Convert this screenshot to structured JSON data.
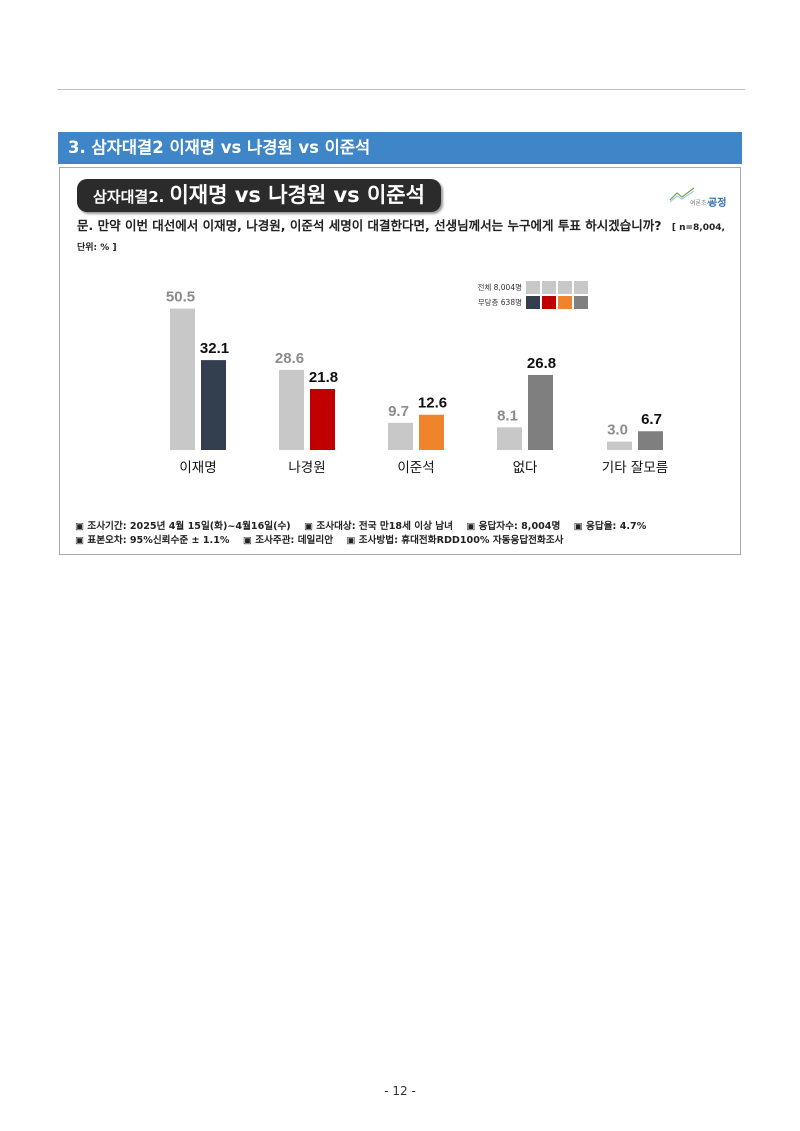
{
  "section": {
    "title": "3. 삼자대결2 이재명 vs 나경원 vs 이준석"
  },
  "chart_title": {
    "small": "삼자대결2.",
    "large": "이재명 vs 나경원 vs 이준석"
  },
  "logo": {
    "small": "여론조사",
    "big": "공정"
  },
  "question": {
    "text": "문. 만약 이번 대선에서 이재명, 나경원, 이준석 세명이 대결한다면, 선생님께서는 누구에게 투표 하시겠습니까?",
    "meta": "[ n=8,004, 단위: % ]"
  },
  "chart_data": {
    "type": "bar",
    "categories": [
      "이재명",
      "나경원",
      "이준석",
      "없다",
      "기타 잘모름"
    ],
    "series": [
      {
        "name": "전체 8,004명",
        "values": [
          50.5,
          28.6,
          9.7,
          8.1,
          3.0
        ],
        "colors": [
          "#c8c8c8",
          "#c8c8c8",
          "#c8c8c8",
          "#c8c8c8",
          "#c8c8c8"
        ]
      },
      {
        "name": "무당층 638명",
        "values": [
          32.1,
          21.8,
          12.6,
          26.8,
          6.7
        ],
        "colors": [
          "#333e4f",
          "#c00000",
          "#f0842c",
          "#7f7f7f",
          "#7f7f7f"
        ]
      }
    ],
    "ylim": [
      0,
      60
    ],
    "value_label_colors": [
      "#8c8c8c",
      "#111111"
    ]
  },
  "footer": {
    "line1": [
      "▣ 조사기간: 2025년 4월 15일(화)~4월16일(수)",
      "▣ 조사대상: 전국 만18세 이상 남녀",
      "▣ 응답자수: 8,004명",
      "▣ 응답율: 4.7%"
    ],
    "line2": [
      "▣ 표본오차: 95%신뢰수준 ± 1.1%",
      "▣ 조사주관: 데일리안",
      "▣ 조사방법: 휴대전화RDD100% 자동응답전화조사"
    ]
  },
  "page_number": "- 12 -"
}
